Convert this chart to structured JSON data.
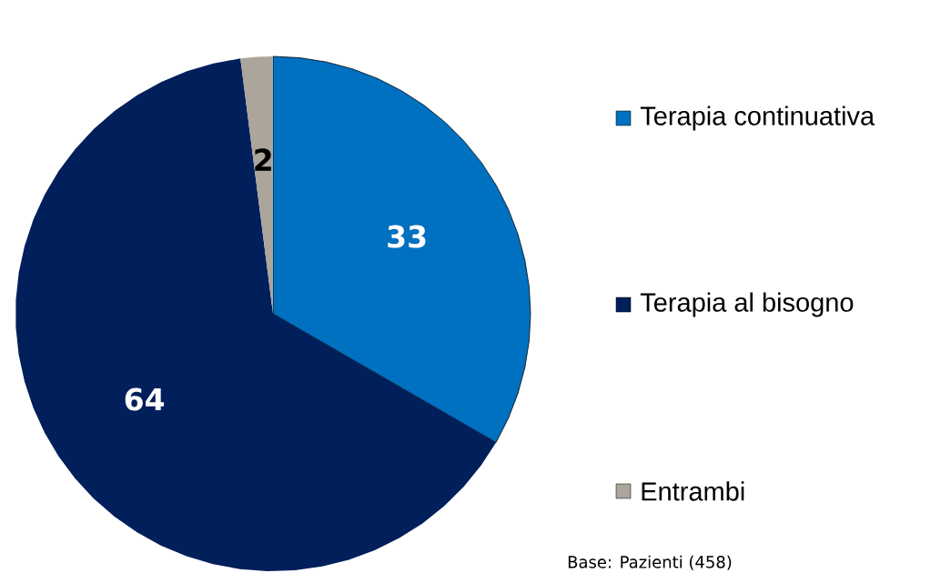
{
  "chart_data": {
    "type": "pie",
    "categories": [
      "Terapia continuativa",
      "Terapia al bisogno",
      "Entrambi"
    ],
    "values": [
      33,
      64,
      2
    ],
    "colors": [
      "#0070c0",
      "#001f5b",
      "#aba59c"
    ],
    "data_labels": true,
    "legend": "right",
    "annotations": [
      "Base: Pazienti (458)"
    ]
  }
}
